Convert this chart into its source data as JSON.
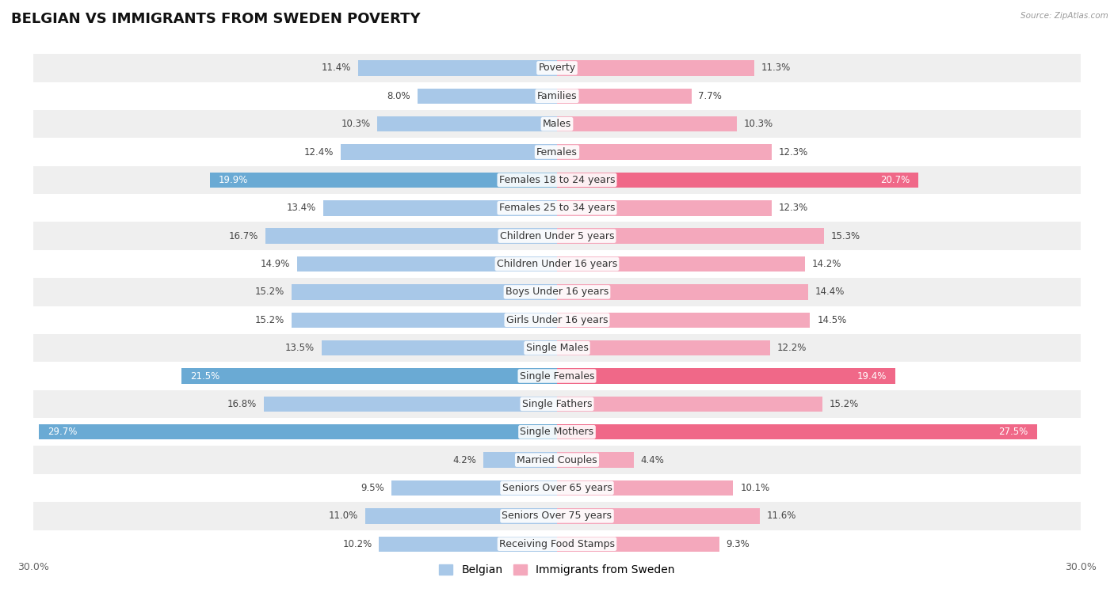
{
  "title": "BELGIAN VS IMMIGRANTS FROM SWEDEN POVERTY",
  "source": "Source: ZipAtlas.com",
  "categories": [
    "Poverty",
    "Families",
    "Males",
    "Females",
    "Females 18 to 24 years",
    "Females 25 to 34 years",
    "Children Under 5 years",
    "Children Under 16 years",
    "Boys Under 16 years",
    "Girls Under 16 years",
    "Single Males",
    "Single Females",
    "Single Fathers",
    "Single Mothers",
    "Married Couples",
    "Seniors Over 65 years",
    "Seniors Over 75 years",
    "Receiving Food Stamps"
  ],
  "belgian": [
    11.4,
    8.0,
    10.3,
    12.4,
    19.9,
    13.4,
    16.7,
    14.9,
    15.2,
    15.2,
    13.5,
    21.5,
    16.8,
    29.7,
    4.2,
    9.5,
    11.0,
    10.2
  ],
  "immigrants": [
    11.3,
    7.7,
    10.3,
    12.3,
    20.7,
    12.3,
    15.3,
    14.2,
    14.4,
    14.5,
    12.2,
    19.4,
    15.2,
    27.5,
    4.4,
    10.1,
    11.6,
    9.3
  ],
  "belgian_color": "#a8c8e8",
  "immigrant_color": "#f4a8bc",
  "belgian_highlight_color": "#6aaad4",
  "immigrant_highlight_color": "#f06888",
  "highlight_rows": [
    4,
    11,
    13
  ],
  "axis_limit": 30.0,
  "bg_color_odd": "#efefef",
  "bg_color_even": "#ffffff",
  "bar_height": 0.55,
  "title_fontsize": 13,
  "label_fontsize": 9,
  "value_fontsize": 8.5,
  "legend_labels": [
    "Belgian",
    "Immigrants from Sweden"
  ]
}
